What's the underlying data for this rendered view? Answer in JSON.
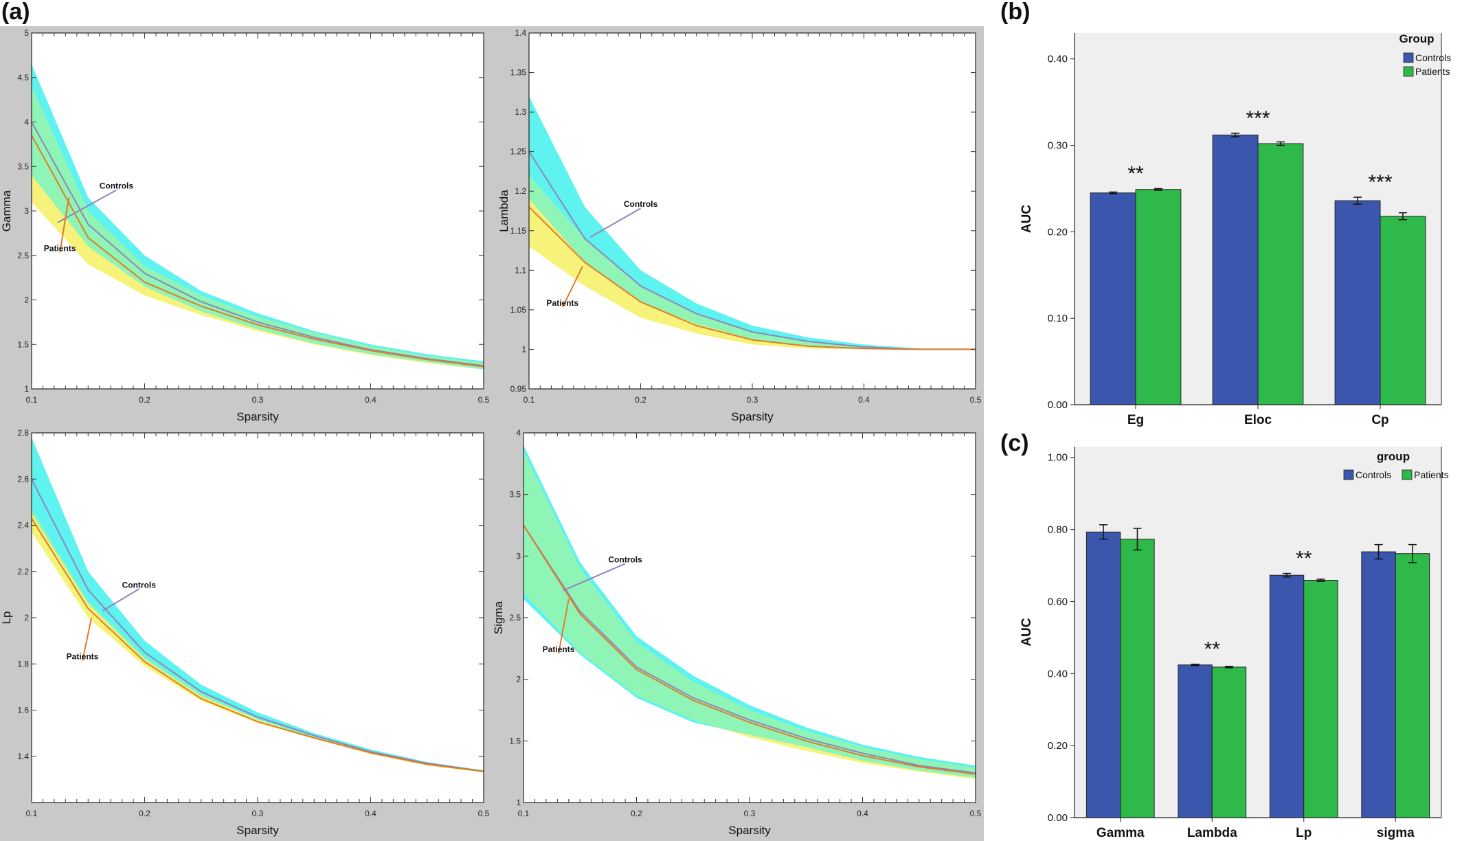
{
  "panel_labels": {
    "a": "(a)",
    "b": "(b)",
    "c": "(c)"
  },
  "colors": {
    "panel_a_bg": "#c9c9c9",
    "bar_bg": "#efefef",
    "controls_line": "#8f86b8",
    "patients_line": "#e07b2a",
    "controls_band": "#5ef2f0",
    "patients_band": "#f7f27a",
    "overlap_band": "#8ff5b6",
    "controls_bar": "#3b56ad",
    "patients_bar": "#2fb94a"
  },
  "chart_data": [
    {
      "id": "gamma",
      "type": "line",
      "xlabel": "Sparsity",
      "ylabel": "Gamma",
      "xlim": [
        0.1,
        0.5
      ],
      "ylim": [
        1,
        5
      ],
      "xticks": [
        "0.1",
        "0.2",
        "0.3",
        "0.4",
        "0.5"
      ],
      "yticks": [
        "1",
        "1.5",
        "2",
        "2.5",
        "3",
        "3.5",
        "4",
        "4.5",
        "5"
      ],
      "x": [
        0.1,
        0.15,
        0.2,
        0.25,
        0.3,
        0.35,
        0.4,
        0.45,
        0.5
      ],
      "series": [
        {
          "name": "Controls",
          "values": [
            4.0,
            2.85,
            2.3,
            1.98,
            1.75,
            1.58,
            1.44,
            1.34,
            1.26
          ],
          "band_low": [
            3.4,
            2.6,
            2.15,
            1.87,
            1.67,
            1.51,
            1.39,
            1.3,
            1.22
          ],
          "band_high": [
            4.65,
            3.15,
            2.5,
            2.1,
            1.85,
            1.65,
            1.5,
            1.39,
            1.31
          ]
        },
        {
          "name": "Patients",
          "values": [
            3.85,
            2.7,
            2.2,
            1.93,
            1.72,
            1.56,
            1.43,
            1.33,
            1.25
          ],
          "band_low": [
            3.1,
            2.4,
            2.05,
            1.83,
            1.65,
            1.5,
            1.38,
            1.29,
            1.22
          ],
          "band_high": [
            4.4,
            3.0,
            2.38,
            2.05,
            1.81,
            1.63,
            1.48,
            1.37,
            1.29
          ]
        }
      ],
      "annotations": [
        {
          "text": "Controls",
          "x": 0.175,
          "y": 3.25,
          "tx": 0.123,
          "ty": 2.87
        },
        {
          "text": "Patients",
          "x": 0.125,
          "y": 2.55,
          "tx": 0.133,
          "ty": 3.15
        }
      ]
    },
    {
      "id": "lambda",
      "type": "line",
      "xlabel": "Sparsity",
      "ylabel": "Lambda",
      "xlim": [
        0.1,
        0.5
      ],
      "ylim": [
        0.95,
        1.4
      ],
      "xticks": [
        "0.1",
        "0.2",
        "0.3",
        "0.4",
        "0.5"
      ],
      "yticks": [
        "0.95",
        "1",
        "1.05",
        "1.1",
        "1.15",
        "1.2",
        "1.25",
        "1.3",
        "1.35",
        "1.4"
      ],
      "x": [
        0.1,
        0.15,
        0.2,
        0.25,
        0.3,
        0.35,
        0.4,
        0.45,
        0.5
      ],
      "series": [
        {
          "name": "Controls",
          "values": [
            1.25,
            1.14,
            1.08,
            1.045,
            1.022,
            1.01,
            1.003,
            1.0,
            1.0
          ],
          "band_low": [
            1.19,
            1.11,
            1.06,
            1.032,
            1.013,
            1.004,
            1.0,
            1.0,
            1.0
          ],
          "band_high": [
            1.32,
            1.18,
            1.1,
            1.058,
            1.03,
            1.015,
            1.006,
            1.001,
            1.0
          ]
        },
        {
          "name": "Patients",
          "values": [
            1.18,
            1.11,
            1.06,
            1.03,
            1.012,
            1.004,
            1.001,
            1.0,
            1.0
          ],
          "band_low": [
            1.13,
            1.08,
            1.04,
            1.02,
            1.006,
            1.001,
            1.0,
            1.0,
            1.0
          ],
          "band_high": [
            1.22,
            1.14,
            1.08,
            1.045,
            1.022,
            1.01,
            1.003,
            1.0,
            1.0
          ]
        }
      ],
      "annotations": [
        {
          "text": "Controls",
          "x": 0.2,
          "y": 1.18,
          "tx": 0.155,
          "ty": 1.142
        },
        {
          "text": "Patients",
          "x": 0.13,
          "y": 1.055,
          "tx": 0.148,
          "ty": 1.105
        }
      ]
    },
    {
      "id": "lp",
      "type": "line",
      "xlabel": "Sparsity",
      "ylabel": "Lp",
      "xlim": [
        0.1,
        0.5
      ],
      "ylim": [
        1.2,
        2.8
      ],
      "xticks": [
        "0.1",
        "0.2",
        "0.3",
        "0.4",
        "0.5"
      ],
      "yticks": [
        "1.4",
        "1.6",
        "1.8",
        "2",
        "2.2",
        "2.4",
        "2.6",
        "2.8"
      ],
      "x": [
        0.1,
        0.15,
        0.2,
        0.25,
        0.3,
        0.35,
        0.4,
        0.45,
        0.5
      ],
      "series": [
        {
          "name": "Controls",
          "values": [
            2.6,
            2.12,
            1.85,
            1.68,
            1.57,
            1.49,
            1.42,
            1.37,
            1.335
          ],
          "band_low": [
            2.45,
            2.06,
            1.82,
            1.66,
            1.56,
            1.48,
            1.415,
            1.365,
            1.33
          ],
          "band_high": [
            2.78,
            2.2,
            1.9,
            1.71,
            1.59,
            1.5,
            1.43,
            1.375,
            1.34
          ]
        },
        {
          "name": "Patients",
          "values": [
            2.43,
            2.04,
            1.81,
            1.65,
            1.55,
            1.48,
            1.415,
            1.365,
            1.335
          ],
          "band_low": [
            2.37,
            2.0,
            1.79,
            1.64,
            1.545,
            1.475,
            1.41,
            1.36,
            1.33
          ],
          "band_high": [
            2.47,
            2.07,
            1.83,
            1.67,
            1.56,
            1.485,
            1.42,
            1.37,
            1.34
          ]
        }
      ],
      "annotations": [
        {
          "text": "Controls",
          "x": 0.195,
          "y": 2.13,
          "tx": 0.163,
          "ty": 2.03
        },
        {
          "text": "Patients",
          "x": 0.145,
          "y": 1.82,
          "tx": 0.153,
          "ty": 2.0
        }
      ]
    },
    {
      "id": "sigma",
      "type": "line",
      "xlabel": "Sparsity",
      "ylabel": "Sigma",
      "xlim": [
        0.1,
        0.5
      ],
      "ylim": [
        1,
        4
      ],
      "xticks": [
        "0.1",
        "0.2",
        "0.3",
        "0.4",
        "0.5"
      ],
      "yticks": [
        "1",
        "1.5",
        "2",
        "2.5",
        "3",
        "3.5",
        "4"
      ],
      "x": [
        0.1,
        0.15,
        0.2,
        0.25,
        0.3,
        0.35,
        0.4,
        0.45,
        0.5
      ],
      "series": [
        {
          "name": "Controls",
          "values": [
            3.25,
            2.55,
            2.1,
            1.85,
            1.67,
            1.52,
            1.4,
            1.3,
            1.24
          ],
          "band_low": [
            2.65,
            2.2,
            1.85,
            1.65,
            1.55,
            1.45,
            1.34,
            1.26,
            1.2
          ],
          "band_high": [
            3.9,
            2.95,
            2.35,
            2.03,
            1.79,
            1.61,
            1.47,
            1.37,
            1.3
          ]
        },
        {
          "name": "Patients",
          "values": [
            3.25,
            2.53,
            2.08,
            1.83,
            1.65,
            1.5,
            1.38,
            1.29,
            1.23
          ],
          "band_low": [
            2.7,
            2.22,
            1.87,
            1.67,
            1.53,
            1.42,
            1.32,
            1.25,
            1.19
          ],
          "band_high": [
            3.85,
            2.9,
            2.3,
            1.98,
            1.75,
            1.58,
            1.45,
            1.35,
            1.28
          ]
        }
      ],
      "annotations": [
        {
          "text": "Controls",
          "x": 0.19,
          "y": 2.95,
          "tx": 0.135,
          "ty": 2.72
        },
        {
          "text": "Patients",
          "x": 0.131,
          "y": 2.22,
          "tx": 0.14,
          "ty": 2.65
        }
      ]
    },
    {
      "id": "auc_b",
      "type": "bar",
      "categories": [
        "Eg",
        "Eloc",
        "Cp"
      ],
      "ylabel": "AUC",
      "ylim": [
        0,
        0.43
      ],
      "yticks": [
        "0.00",
        "0.10",
        "0.20",
        "0.30",
        "0.40"
      ],
      "legend_title": "Group",
      "legend_position": "top-right",
      "series": [
        {
          "name": "Controls",
          "values": [
            0.245,
            0.312,
            0.236
          ],
          "errors": [
            0.001,
            0.002,
            0.004
          ]
        },
        {
          "name": "Patients",
          "values": [
            0.249,
            0.302,
            0.218
          ],
          "errors": [
            0.001,
            0.002,
            0.004
          ]
        }
      ],
      "significance": [
        "**",
        "***",
        "***"
      ]
    },
    {
      "id": "auc_c",
      "type": "bar",
      "categories": [
        "Gamma",
        "Lambda",
        "Lp",
        "sigma"
      ],
      "ylabel": "AUC",
      "ylim": [
        0,
        1.03
      ],
      "yticks": [
        "0.00",
        "0.20",
        "0.40",
        "0.60",
        "0.80",
        "1.00"
      ],
      "legend_title": "group",
      "legend_position": "top-right",
      "series": [
        {
          "name": "Controls",
          "values": [
            0.793,
            0.424,
            0.673,
            0.738
          ],
          "errors": [
            0.02,
            0.002,
            0.005,
            0.02
          ]
        },
        {
          "name": "Patients",
          "values": [
            0.773,
            0.418,
            0.659,
            0.733
          ],
          "errors": [
            0.03,
            0.002,
            0.003,
            0.025
          ]
        }
      ],
      "significance": [
        "",
        "**",
        "**",
        ""
      ]
    }
  ]
}
